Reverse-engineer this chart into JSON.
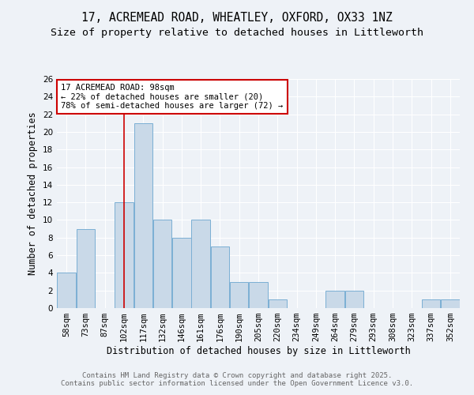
{
  "title_line1": "17, ACREMEAD ROAD, WHEATLEY, OXFORD, OX33 1NZ",
  "title_line2": "Size of property relative to detached houses in Littleworth",
  "xlabel": "Distribution of detached houses by size in Littleworth",
  "ylabel": "Number of detached properties",
  "bar_labels": [
    "58sqm",
    "73sqm",
    "87sqm",
    "102sqm",
    "117sqm",
    "132sqm",
    "146sqm",
    "161sqm",
    "176sqm",
    "190sqm",
    "205sqm",
    "220sqm",
    "234sqm",
    "249sqm",
    "264sqm",
    "279sqm",
    "293sqm",
    "308sqm",
    "323sqm",
    "337sqm",
    "352sqm"
  ],
  "bar_values": [
    4,
    9,
    0,
    12,
    21,
    10,
    8,
    10,
    7,
    3,
    3,
    1,
    0,
    0,
    2,
    2,
    0,
    0,
    0,
    1,
    1
  ],
  "bar_color": "#c9d9e8",
  "bar_edgecolor": "#7bafd4",
  "vline_color": "#cc0000",
  "vline_position": 3.5,
  "annotation_text": "17 ACREMEAD ROAD: 98sqm\n← 22% of detached houses are smaller (20)\n78% of semi-detached houses are larger (72) →",
  "annotation_box_facecolor": "#ffffff",
  "annotation_box_edgecolor": "#cc0000",
  "ylim": [
    0,
    26
  ],
  "yticks": [
    0,
    2,
    4,
    6,
    8,
    10,
    12,
    14,
    16,
    18,
    20,
    22,
    24,
    26
  ],
  "background_color": "#eef2f7",
  "grid_color": "#ffffff",
  "title_fontsize": 10.5,
  "subtitle_fontsize": 9.5,
  "axis_label_fontsize": 8.5,
  "tick_fontsize": 7.5,
  "annotation_fontsize": 7.5,
  "footer_fontsize": 6.5,
  "footer_text": "Contains HM Land Registry data © Crown copyright and database right 2025.\nContains public sector information licensed under the Open Government Licence v3.0.",
  "footer_color": "#666666"
}
